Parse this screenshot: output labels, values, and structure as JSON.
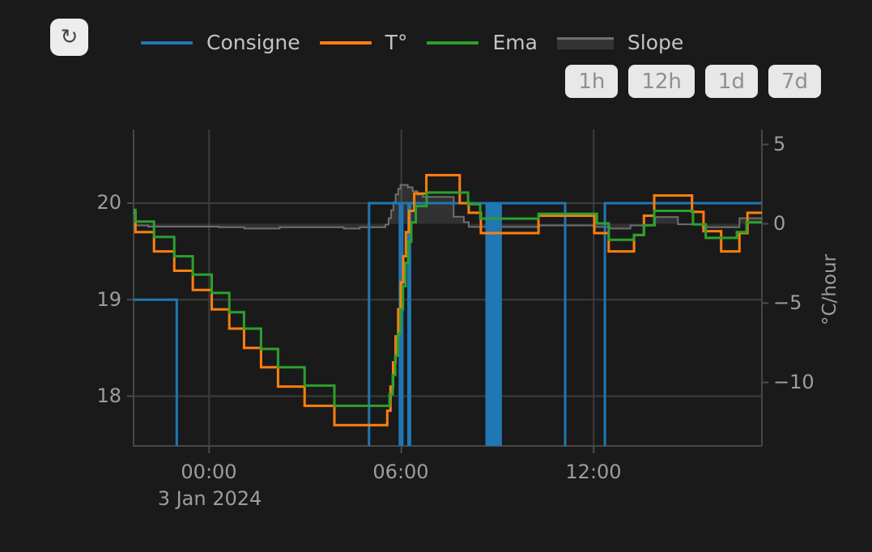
{
  "app": {
    "background": "#1a1a1a"
  },
  "toolbar": {
    "refresh_icon": "↻"
  },
  "legend": {
    "position": "top",
    "items": [
      {
        "label": "Consigne",
        "color": "#1f77b4",
        "swatch": "line"
      },
      {
        "label": "T°",
        "color": "#ff7f0e",
        "swatch": "line"
      },
      {
        "label": "Ema",
        "color": "#2ca02c",
        "swatch": "line"
      },
      {
        "label": "Slope",
        "color": "#6f6f6f",
        "fill": "#343434",
        "swatch": "area"
      }
    ]
  },
  "range_buttons": [
    {
      "label": "1h"
    },
    {
      "label": "12h"
    },
    {
      "label": "1d"
    },
    {
      "label": "7d"
    }
  ],
  "chart_data": {
    "type": "line",
    "title": "",
    "grid": true,
    "legend_position": "top",
    "x_axis": {
      "tick_labels": [
        "00:00",
        "06:00",
        "12:00"
      ],
      "tick_hours": [
        0,
        6,
        12
      ],
      "date_label": "3 Jan 2024",
      "range_hours": [
        -2.36,
        17.25
      ]
    },
    "y_left": {
      "tick_labels": [
        "20",
        "19",
        "18"
      ],
      "tick_values": [
        20,
        19,
        18
      ],
      "units": "°C",
      "range": [
        17.48,
        20.76
      ]
    },
    "y_right": {
      "tick_labels": [
        "5",
        "0",
        "−5",
        "−10"
      ],
      "tick_values": [
        5,
        0,
        -5,
        -10
      ],
      "title": "°C/hour",
      "range": [
        -14.0,
        5.95
      ]
    },
    "series": [
      {
        "id": "slope",
        "name": "Slope",
        "axis": "right",
        "mode": "steps",
        "color": "#6f6f6f",
        "fill": "rgba(130,130,130,0.22)",
        "fill_to_zero": true,
        "width": 2,
        "points": [
          [
            -2.36,
            -0.1
          ],
          [
            -1.9,
            -0.18
          ],
          [
            0.3,
            -0.22
          ],
          [
            1.1,
            -0.3
          ],
          [
            2.2,
            -0.22
          ],
          [
            4.2,
            -0.3
          ],
          [
            4.7,
            -0.22
          ],
          [
            5.5,
            -0.05
          ],
          [
            5.6,
            0.35
          ],
          [
            5.68,
            0.85
          ],
          [
            5.75,
            1.35
          ],
          [
            5.82,
            1.85
          ],
          [
            5.9,
            2.2
          ],
          [
            5.97,
            2.45
          ],
          [
            6.2,
            2.3
          ],
          [
            6.35,
            2.05
          ],
          [
            6.5,
            1.85
          ],
          [
            6.67,
            1.7
          ],
          [
            7.63,
            0.45
          ],
          [
            7.95,
            0.1
          ],
          [
            8.1,
            -0.2
          ],
          [
            10.3,
            -0.1
          ],
          [
            12.0,
            -0.2
          ],
          [
            12.5,
            -0.3
          ],
          [
            13.15,
            -0.1
          ],
          [
            13.92,
            0.43
          ],
          [
            14.63,
            -0.03
          ],
          [
            15.4,
            -0.22
          ],
          [
            16.55,
            0.35
          ]
        ]
      },
      {
        "id": "consigne",
        "name": "Consigne",
        "axis": "left",
        "mode": "steps",
        "color": "#1f77b4",
        "width": 3,
        "points": [
          [
            -2.36,
            19.0
          ],
          [
            -1.01,
            17.0
          ],
          [
            4.99,
            20.0
          ],
          [
            5.95,
            17.0
          ],
          [
            6.03,
            20.0
          ],
          [
            6.22,
            17.0
          ],
          [
            6.27,
            20.0
          ],
          [
            8.66,
            17.0
          ],
          [
            8.7,
            20.0
          ],
          [
            8.76,
            17.0
          ],
          [
            8.8,
            20.0
          ],
          [
            8.86,
            17.0
          ],
          [
            8.9,
            20.0
          ],
          [
            8.96,
            17.0
          ],
          [
            9.0,
            20.0
          ],
          [
            9.06,
            17.0
          ],
          [
            9.1,
            20.0
          ],
          [
            11.11,
            17.0
          ],
          [
            12.35,
            20.0
          ]
        ]
      },
      {
        "id": "temperature",
        "name": "T°",
        "axis": "left",
        "mode": "steps",
        "color": "#ff7f0e",
        "width": 3,
        "points": [
          [
            -2.36,
            19.9
          ],
          [
            -2.3,
            19.7
          ],
          [
            -1.72,
            19.5
          ],
          [
            -1.09,
            19.3
          ],
          [
            -0.51,
            19.1
          ],
          [
            0.08,
            18.9
          ],
          [
            0.63,
            18.7
          ],
          [
            1.09,
            18.5
          ],
          [
            1.62,
            18.3
          ],
          [
            2.15,
            18.1
          ],
          [
            2.98,
            17.9
          ],
          [
            3.91,
            17.7
          ],
          [
            5.56,
            17.85
          ],
          [
            5.66,
            18.1
          ],
          [
            5.74,
            18.35
          ],
          [
            5.82,
            18.62
          ],
          [
            5.9,
            18.9
          ],
          [
            5.98,
            19.18
          ],
          [
            6.06,
            19.45
          ],
          [
            6.14,
            19.7
          ],
          [
            6.24,
            19.92
          ],
          [
            6.4,
            20.1
          ],
          [
            6.78,
            20.29
          ],
          [
            7.82,
            20.0
          ],
          [
            8.1,
            19.9
          ],
          [
            8.48,
            19.69
          ],
          [
            10.28,
            19.87
          ],
          [
            12.02,
            19.69
          ],
          [
            12.47,
            19.5
          ],
          [
            13.26,
            19.67
          ],
          [
            13.57,
            19.87
          ],
          [
            13.89,
            20.08
          ],
          [
            15.07,
            19.91
          ],
          [
            15.43,
            19.71
          ],
          [
            15.98,
            19.5
          ],
          [
            16.55,
            19.69
          ],
          [
            16.8,
            19.9
          ]
        ]
      },
      {
        "id": "ema",
        "name": "Ema",
        "axis": "left",
        "mode": "steps",
        "color": "#2ca02c",
        "width": 3,
        "points": [
          [
            -2.36,
            19.93
          ],
          [
            -2.3,
            19.81
          ],
          [
            -1.72,
            19.65
          ],
          [
            -1.09,
            19.45
          ],
          [
            -0.51,
            19.26
          ],
          [
            0.08,
            19.07
          ],
          [
            0.63,
            18.87
          ],
          [
            1.09,
            18.7
          ],
          [
            1.62,
            18.49
          ],
          [
            2.15,
            18.3
          ],
          [
            2.98,
            18.11
          ],
          [
            3.91,
            17.9
          ],
          [
            5.63,
            18.02
          ],
          [
            5.73,
            18.22
          ],
          [
            5.81,
            18.42
          ],
          [
            5.89,
            18.65
          ],
          [
            5.97,
            18.9
          ],
          [
            6.05,
            19.14
          ],
          [
            6.13,
            19.38
          ],
          [
            6.21,
            19.6
          ],
          [
            6.31,
            19.8
          ],
          [
            6.45,
            19.97
          ],
          [
            6.79,
            20.11
          ],
          [
            8.08,
            19.99
          ],
          [
            8.46,
            19.84
          ],
          [
            10.28,
            19.89
          ],
          [
            12.1,
            19.79
          ],
          [
            12.47,
            19.62
          ],
          [
            13.26,
            19.67
          ],
          [
            13.57,
            19.77
          ],
          [
            13.89,
            19.92
          ],
          [
            15.1,
            19.78
          ],
          [
            15.5,
            19.64
          ],
          [
            16.47,
            19.7
          ],
          [
            16.77,
            19.8
          ]
        ]
      }
    ]
  }
}
